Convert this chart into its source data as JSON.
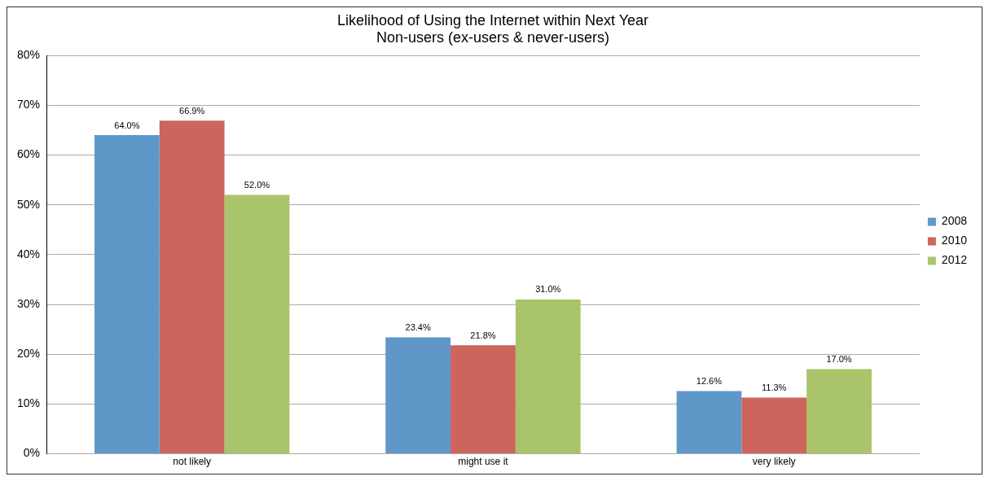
{
  "chart_data": {
    "type": "bar",
    "title": "Likelihood of Using the Internet within Next Year",
    "subtitle": "Non-users (ex-users & never-users)",
    "categories": [
      "not likely",
      "might use it",
      "very likely"
    ],
    "series": [
      {
        "name": "2008",
        "color": "#6097c9",
        "values": [
          64.0,
          23.4,
          12.6
        ],
        "value_labels": [
          "64.0%",
          "23.4%",
          "12.6%"
        ]
      },
      {
        "name": "2010",
        "color": "#cd655d",
        "values": [
          66.9,
          21.8,
          11.3
        ],
        "value_labels": [
          "66.9%",
          "21.8%",
          "11.3%"
        ]
      },
      {
        "name": "2012",
        "color": "#a9c46a",
        "values": [
          52.0,
          31.0,
          17.0
        ],
        "value_labels": [
          "52.0%",
          "31.0%",
          "17.0%"
        ]
      }
    ],
    "ylim": [
      0,
      80
    ],
    "yticks": [
      {
        "value": 0,
        "label": "0%"
      },
      {
        "value": 10,
        "label": "10%"
      },
      {
        "value": 20,
        "label": "20%"
      },
      {
        "value": 30,
        "label": "30%"
      },
      {
        "value": 40,
        "label": "40%"
      },
      {
        "value": 50,
        "label": "50%"
      },
      {
        "value": 60,
        "label": "60%"
      },
      {
        "value": 70,
        "label": "70%"
      },
      {
        "value": 80,
        "label": "80%"
      }
    ],
    "grid": "y",
    "legend": "right"
  }
}
